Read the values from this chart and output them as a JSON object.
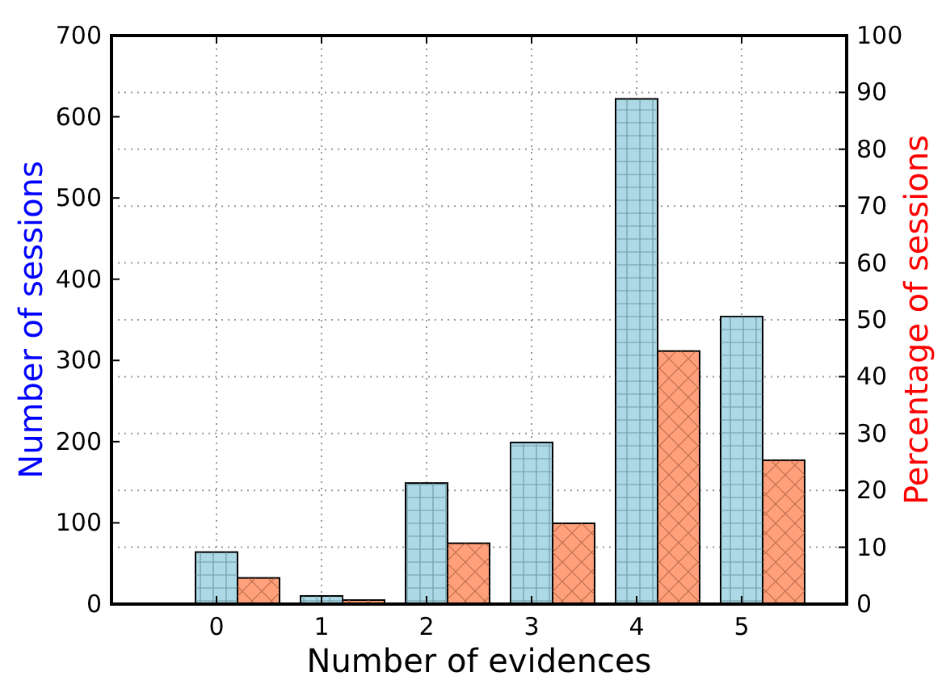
{
  "chart_data": {
    "type": "bar",
    "xlabel": "Number of evidences",
    "ylabel": "Number of sessions",
    "y2label": "Percentage of sessions",
    "x": [
      0,
      1,
      2,
      3,
      4,
      5
    ],
    "xlim": [
      -1,
      6
    ],
    "xticks": [
      0,
      1,
      2,
      3,
      4,
      5
    ],
    "ylim": [
      0,
      700
    ],
    "yticks": [
      0,
      100,
      200,
      300,
      400,
      500,
      600,
      700
    ],
    "y2lim": [
      0,
      100
    ],
    "y2ticks": [
      0,
      10,
      20,
      30,
      40,
      50,
      60,
      70,
      80,
      90,
      100
    ],
    "grid": true,
    "series": [
      {
        "color": "#add8e6",
        "values": [
          64,
          10,
          149,
          199,
          622,
          354
        ]
      },
      {
        "color": "#ffa07a",
        "axis": "y2",
        "values": [
          4.6,
          0.7,
          10.7,
          14.2,
          44.5,
          25.3
        ]
      }
    ]
  }
}
